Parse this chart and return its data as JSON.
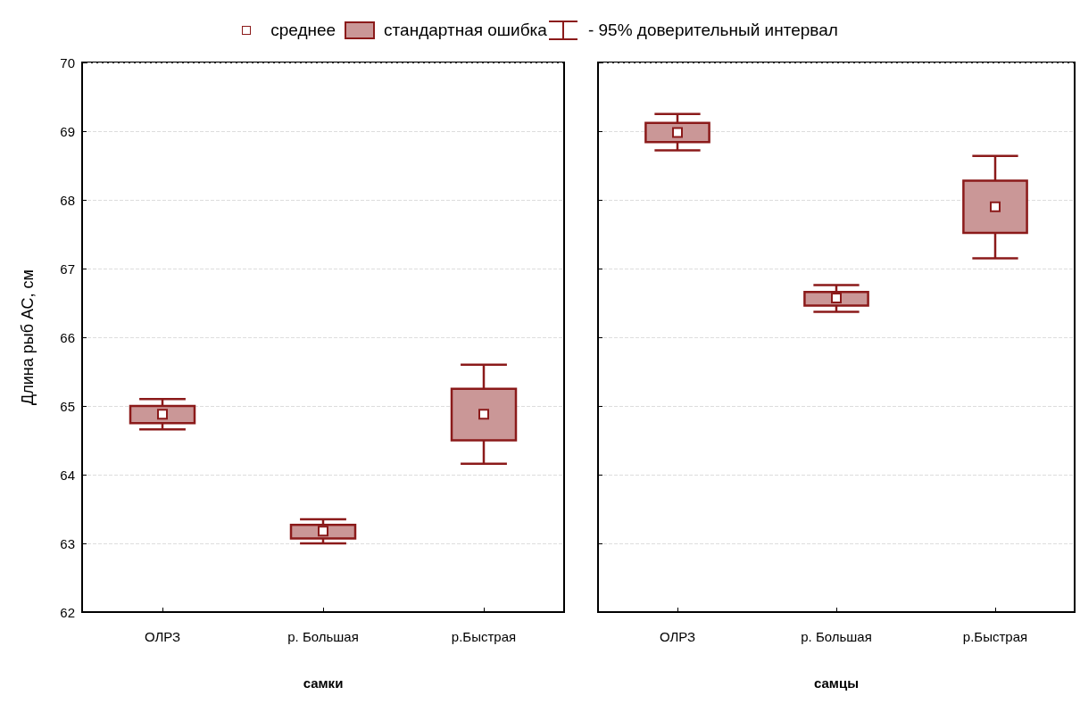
{
  "chart_data": [
    {
      "type": "box",
      "ylabel": "Длина рыб АС, см",
      "xlabel": "самки",
      "categories": [
        "ОЛРЗ",
        "р. Большая",
        "р.Быстрая"
      ],
      "ylim": [
        62,
        70
      ],
      "yticks": [
        62,
        63,
        64,
        65,
        66,
        67,
        68,
        69,
        70
      ],
      "grid": "y",
      "marker": "square",
      "annotations": [
        "среднее",
        "стандартная ошибка",
        "- 95% доверительный интервал"
      ],
      "series": [
        {
          "color": "#8b1a1a",
          "boxes": [
            {
              "low": 64.66,
              "q1": 64.75,
              "median": 64.88,
              "q3": 65.0,
              "high": 65.1
            },
            {
              "low": 63.0,
              "q1": 63.07,
              "median": 63.18,
              "q3": 63.27,
              "high": 63.35
            },
            {
              "low": 64.16,
              "q1": 64.5,
              "median": 64.88,
              "q3": 65.25,
              "high": 65.6
            }
          ]
        }
      ]
    },
    {
      "type": "box",
      "xlabel": "самцы",
      "categories": [
        "ОЛРЗ",
        "р. Большая",
        "р.Быстрая"
      ],
      "ylim": [
        62,
        70
      ],
      "yticks": [
        62,
        63,
        64,
        65,
        66,
        67,
        68,
        69,
        70
      ],
      "grid": "y",
      "tick_labels": "x",
      "marker": "square",
      "series": [
        {
          "color": "#8b1a1a",
          "boxes": [
            {
              "low": 68.72,
              "q1": 68.84,
              "median": 68.98,
              "q3": 69.12,
              "high": 69.25
            },
            {
              "low": 66.37,
              "q1": 66.46,
              "median": 66.57,
              "q3": 66.66,
              "high": 66.76
            },
            {
              "low": 67.15,
              "q1": 67.52,
              "median": 67.9,
              "q3": 68.28,
              "high": 68.64
            }
          ]
        }
      ]
    }
  ]
}
